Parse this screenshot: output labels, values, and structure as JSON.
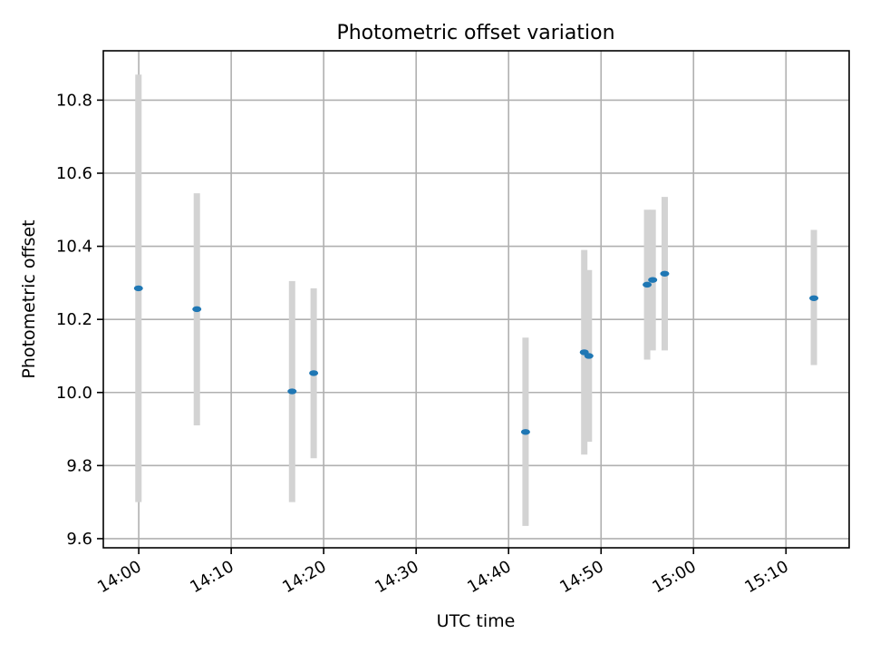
{
  "chart_data": {
    "type": "scatter",
    "title": "Photometric offset variation",
    "xlabel": "UTC time",
    "ylabel": "Photometric offset",
    "xlim": [
      "13:56:10",
      "15:16:50"
    ],
    "ylim": [
      9.575,
      10.935
    ],
    "x_ticks": [
      "14:00",
      "14:10",
      "14:20",
      "14:30",
      "14:40",
      "14:50",
      "15:00",
      "15:10"
    ],
    "y_ticks": [
      "9.6",
      "9.8",
      "10.0",
      "10.2",
      "10.4",
      "10.6",
      "10.8"
    ],
    "grid": true,
    "colors": {
      "point": "#1f77b4",
      "error_bar": "#d3d3d3"
    },
    "points": [
      {
        "x": "13:59:58",
        "y": 10.285,
        "ylow": 9.7,
        "yhigh": 10.87
      },
      {
        "x": "14:06:17",
        "y": 10.228,
        "ylow": 9.91,
        "yhigh": 10.545
      },
      {
        "x": "14:16:35",
        "y": 10.003,
        "ylow": 9.7,
        "yhigh": 10.305
      },
      {
        "x": "14:18:55",
        "y": 10.053,
        "ylow": 9.82,
        "yhigh": 10.285
      },
      {
        "x": "14:41:50",
        "y": 9.892,
        "ylow": 9.635,
        "yhigh": 10.15
      },
      {
        "x": "14:48:11",
        "y": 10.11,
        "ylow": 9.83,
        "yhigh": 10.39
      },
      {
        "x": "14:48:41",
        "y": 10.1,
        "ylow": 9.865,
        "yhigh": 10.335
      },
      {
        "x": "14:54:59",
        "y": 10.295,
        "ylow": 10.09,
        "yhigh": 10.5
      },
      {
        "x": "14:55:35",
        "y": 10.308,
        "ylow": 10.115,
        "yhigh": 10.5
      },
      {
        "x": "14:56:53",
        "y": 10.325,
        "ylow": 10.115,
        "yhigh": 10.535
      },
      {
        "x": "15:13:01",
        "y": 10.258,
        "ylow": 10.075,
        "yhigh": 10.445
      }
    ]
  }
}
